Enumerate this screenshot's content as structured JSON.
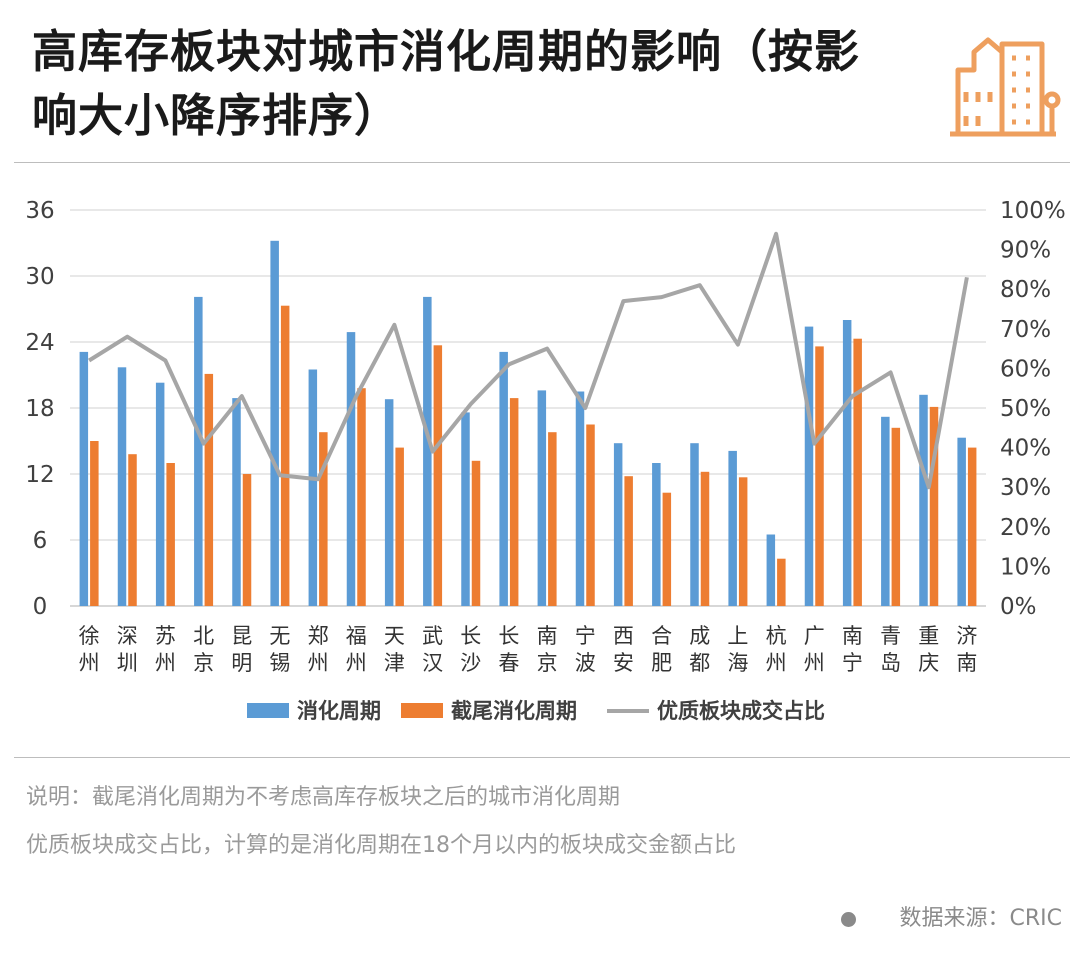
{
  "header": {
    "title": "高库存板块对城市消化周期的影响（按影响大小降序排序）",
    "logo_icon": "city-buildings-icon",
    "logo_color": "#EE9F5E"
  },
  "chart_data": {
    "type": "bar",
    "categories": [
      "徐州",
      "深圳",
      "苏州",
      "北京",
      "昆明",
      "无锡",
      "郑州",
      "福州",
      "天津",
      "武汉",
      "长沙",
      "长春",
      "南京",
      "宁波",
      "西安",
      "合肥",
      "成都",
      "上海",
      "杭州",
      "广州",
      "南宁",
      "青岛",
      "重庆",
      "济南"
    ],
    "series": [
      {
        "name": "消化周期",
        "type": "bar",
        "axis": "left",
        "color": "#5B9BD5",
        "values": [
          23.1,
          21.7,
          20.3,
          28.1,
          18.9,
          33.2,
          21.5,
          24.9,
          18.8,
          28.1,
          17.6,
          23.1,
          19.6,
          19.5,
          14.8,
          13.0,
          14.8,
          14.1,
          6.5,
          25.4,
          26.0,
          17.2,
          19.2,
          15.3
        ]
      },
      {
        "name": "截尾消化周期",
        "type": "bar",
        "axis": "left",
        "color": "#ED7D31",
        "values": [
          15.0,
          13.8,
          13.0,
          21.1,
          12.0,
          27.3,
          15.8,
          19.8,
          14.4,
          23.7,
          13.2,
          18.9,
          15.8,
          16.5,
          11.8,
          10.3,
          12.2,
          11.7,
          4.3,
          23.6,
          24.3,
          16.2,
          18.1,
          14.4
        ]
      },
      {
        "name": "优质板块成交占比",
        "type": "line",
        "axis": "right",
        "color": "#A6A6A6",
        "values": [
          62,
          68,
          62,
          41,
          53,
          33,
          32,
          53,
          71,
          39,
          51,
          61,
          65,
          50,
          77,
          78,
          81,
          66,
          94,
          41,
          53,
          59,
          30,
          83
        ]
      }
    ],
    "y_left": {
      "ticks": [
        "0",
        "6",
        "12",
        "18",
        "24",
        "30",
        "36"
      ],
      "ylim": [
        0,
        36
      ]
    },
    "y_right": {
      "ticks": [
        "0%",
        "10%",
        "20%",
        "30%",
        "40%",
        "50%",
        "60%",
        "70%",
        "80%",
        "90%",
        "100%"
      ],
      "ylim": [
        0,
        100
      ]
    },
    "legend_position": "bottom",
    "grid": "horizontal"
  },
  "notes": {
    "line1": "说明：截尾消化周期为不考虑高库存板块之后的城市消化周期",
    "line2": "优质板块成交占比，计算的是消化周期在18个月以内的板块成交金额占比"
  },
  "source": {
    "text": "数据来源：CRIC"
  }
}
